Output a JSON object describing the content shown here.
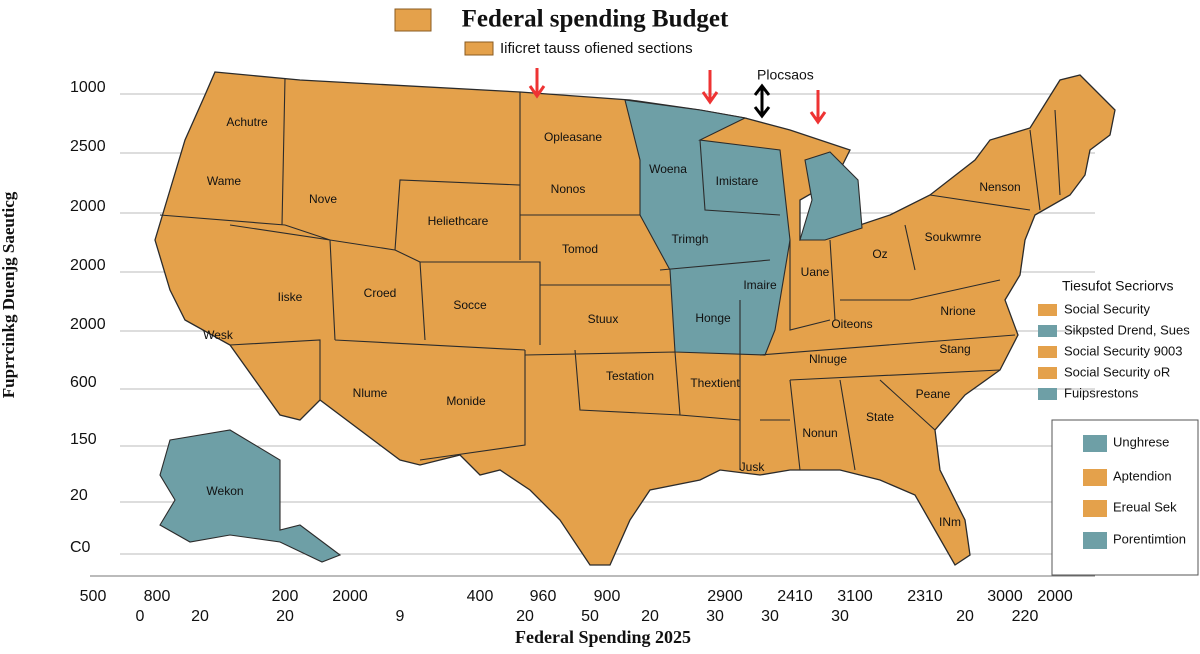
{
  "header": {
    "title": "Federal spending Budget",
    "subtitle": "Iificret tauss ofiened sections"
  },
  "y_axis": {
    "title": "Fuprrcinkg Duenjg Saeuticg",
    "labels": [
      "1000",
      "2500",
      "2000",
      "2000",
      "2000",
      "600",
      "150",
      "20",
      "C0"
    ]
  },
  "x_axis": {
    "title": "Federal Spending 2025",
    "labels_top": [
      "500",
      "800",
      "200",
      "2000",
      "400",
      "960",
      "900",
      "2900",
      "2410",
      "3100",
      "2310",
      "3000",
      "2000"
    ],
    "labels_bottom": [
      "0",
      "20",
      "20",
      "9",
      "20",
      "50",
      "20",
      "30",
      "30",
      "30",
      "20",
      "220"
    ]
  },
  "map": {
    "labels": [
      "Achutre",
      "Wame",
      "Nove",
      "Heliethcare",
      "Opleasane",
      "Woena",
      "Imistare",
      "Nonos",
      "Tomod",
      "Trimgh",
      "Iiske",
      "Croed",
      "Socce",
      "Stuux",
      "Imaire",
      "Honge",
      "Wesk",
      "Nlume",
      "Monide",
      "Testation",
      "Thextient",
      "Uane",
      "Oz",
      "Oiteons",
      "Nrione",
      "Nlnuge",
      "Stang",
      "Soukwmre",
      "Nenson",
      "State",
      "Peane",
      "Nonun",
      "Jusk",
      "INm",
      "Wekon"
    ],
    "annotation": "Plocsaos"
  },
  "legend": {
    "title": "Tiesufot Secriorvs",
    "items": [
      {
        "label": "Social Security",
        "color": "#e4a14b"
      },
      {
        "label": "Sikpsted Drend, Sues",
        "color": "#6e9fa6"
      },
      {
        "label": "Social Security 9003",
        "color": "#e4a14b"
      },
      {
        "label": "Social Security oR",
        "color": "#e4a14b"
      },
      {
        "label": "Fuipsrestons",
        "color": "#6e9fa6"
      }
    ]
  },
  "legend_box": {
    "items": [
      {
        "label": "Unghrese",
        "color": "#6e9fa6"
      },
      {
        "label": "Aptendion",
        "color": "#e4a14b"
      },
      {
        "label": "Ereual Sek",
        "color": "#e4a14b"
      },
      {
        "label": "Porentimtion",
        "color": "#6e9fa6"
      }
    ]
  }
}
